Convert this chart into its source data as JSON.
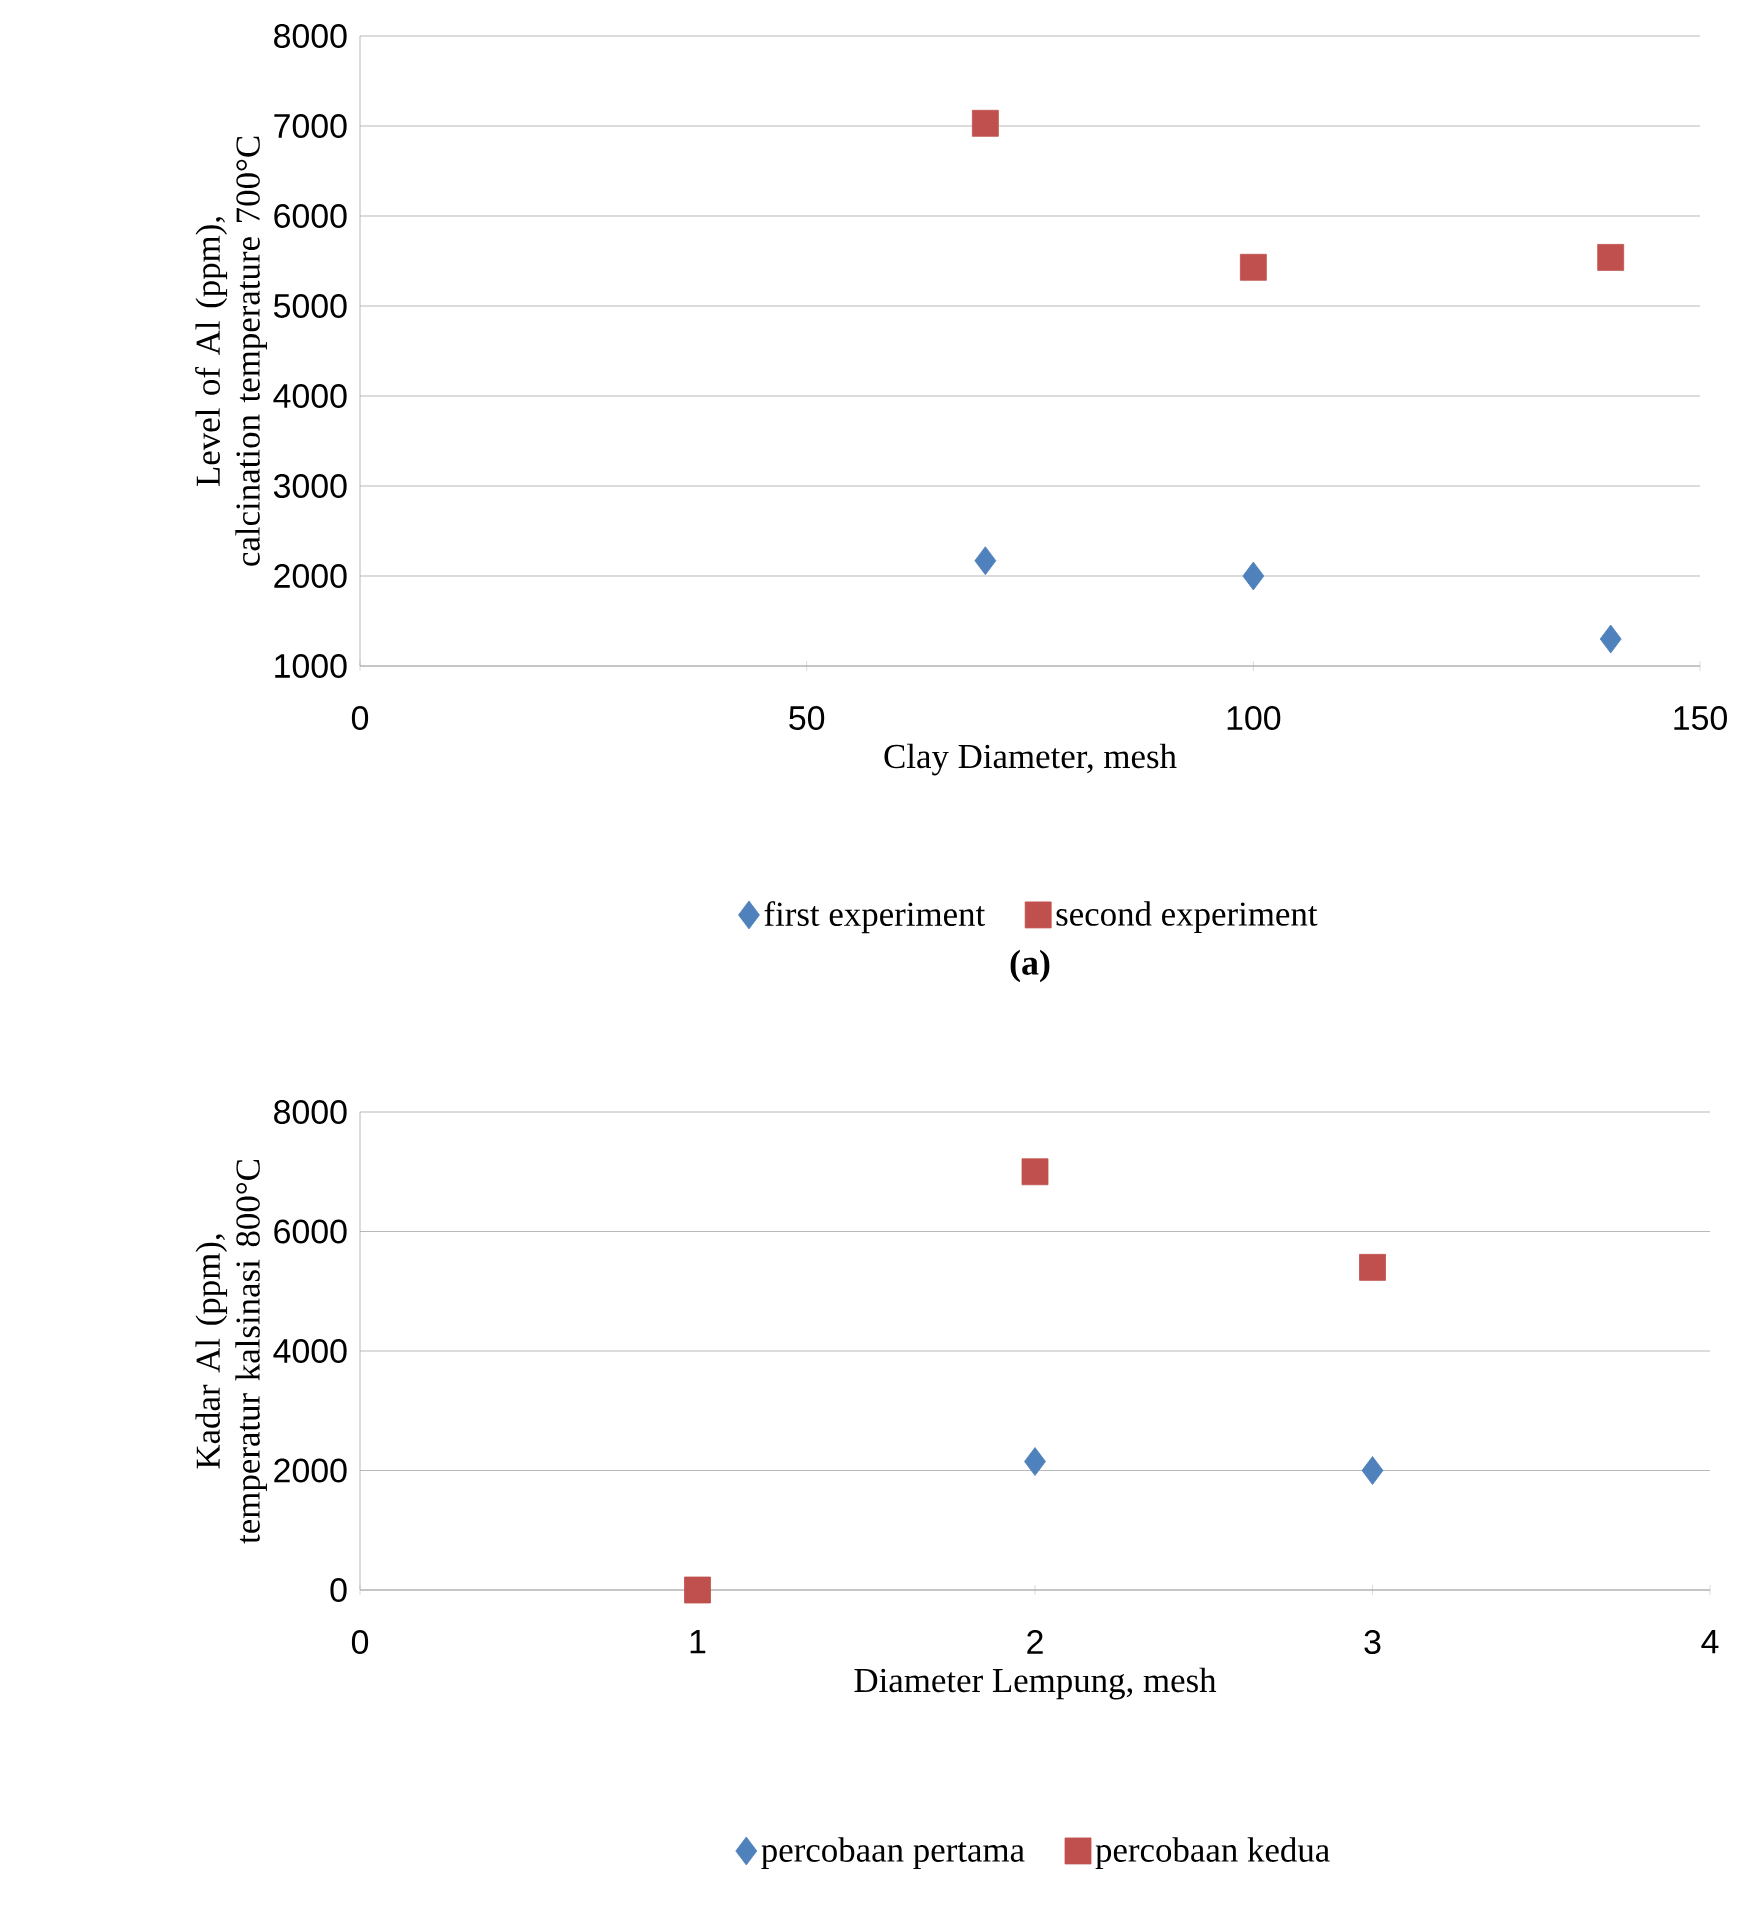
{
  "chart_data": [
    {
      "type": "scatter",
      "xlabel": "Clay Diameter, mesh",
      "ylabel": "Level of Al (ppm), calcination temperature 700°C",
      "xlim": [
        0,
        150
      ],
      "xticks": [
        0,
        50,
        100,
        150
      ],
      "ylim": [
        1000,
        8000
      ],
      "yticks": [
        1000,
        2000,
        3000,
        4000,
        5000,
        6000,
        7000,
        8000
      ],
      "grid": "y",
      "legend": "bottom",
      "annotations": [
        "**(a)**"
      ],
      "series": [
        {
          "name": "first experiment",
          "color": "#4f81bd",
          "marker": "diamond",
          "x": [
            70,
            100,
            140
          ],
          "values": [
            2170,
            2000,
            1300
          ]
        },
        {
          "name": "second experiment",
          "color": "#c0504d",
          "marker": "square",
          "x": [
            70,
            100,
            140
          ],
          "values": [
            7030,
            5430,
            5540
          ]
        }
      ]
    },
    {
      "type": "scatter",
      "xlabel": "Diameter Lempung, mesh",
      "ylabel": "Kadar Al (ppm), temperatur kalsinasi 800°C",
      "xlim": [
        0,
        4
      ],
      "xticks": [
        0,
        1,
        2,
        3,
        4
      ],
      "ylim": [
        0,
        8000
      ],
      "yticks": [
        0,
        2000,
        4000,
        6000,
        8000
      ],
      "grid": "y",
      "legend": "bottom",
      "series": [
        {
          "name": "percobaan pertama",
          "color": "#4f81bd",
          "marker": "diamond",
          "x": [
            2,
            3
          ],
          "values": [
            2150,
            2000
          ]
        },
        {
          "name": "percobaan kedua",
          "color": "#c0504d",
          "marker": "square",
          "x": [
            1,
            2,
            3
          ],
          "values": [
            0,
            7000,
            5400
          ]
        }
      ]
    }
  ]
}
